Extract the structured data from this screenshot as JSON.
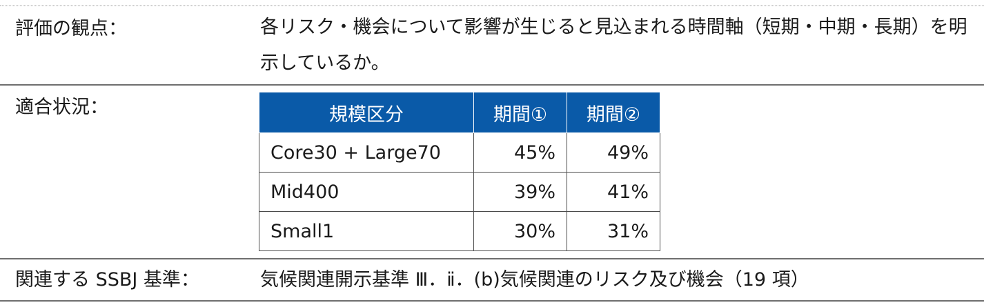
{
  "rows": {
    "perspective": {
      "label": "評価の観点：",
      "text": "各リスク・機会について影響が生じると見込まれる時間軸（短期・中期・長期）を明示しているか。"
    },
    "status": {
      "label": "適合状況：",
      "table": {
        "headers": [
          "規模区分",
          "期間①",
          "期間②"
        ],
        "rows": [
          {
            "segment": "Core30 + Large70",
            "period1": "45%",
            "period2": "49%"
          },
          {
            "segment": "Mid400",
            "period1": "39%",
            "period2": "41%"
          },
          {
            "segment": "Small1",
            "period1": "30%",
            "period2": "31%"
          }
        ]
      }
    },
    "ssbj": {
      "label": "関連する SSBJ 基準：",
      "text": "気候関連開示基準 Ⅲ．ⅱ．(b)気候関連のリスク及び機会（19 項）"
    }
  }
}
